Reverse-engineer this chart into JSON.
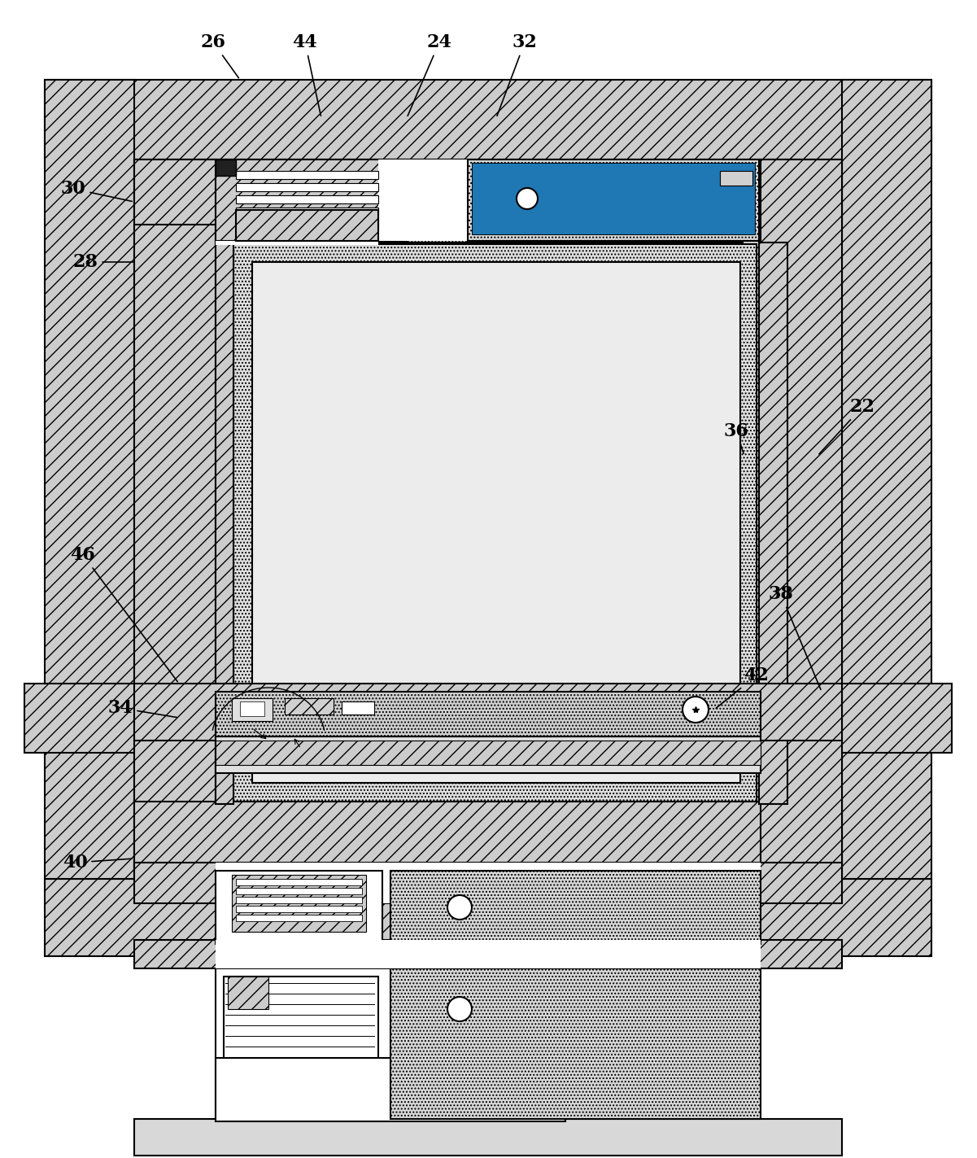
{
  "bg_color": "#ffffff",
  "frame_fc": "#cccccc",
  "panel_light": "#d8d8d8",
  "panel_mid": "#c8c8c8",
  "inner_light": "#e8e8e8",
  "figsize": [
    12.01,
    14.23
  ],
  "dpi": 100,
  "labels_info": [
    [
      "22",
      1060,
      500,
      1005,
      560
    ],
    [
      "24",
      540,
      52,
      500,
      145
    ],
    [
      "26",
      262,
      52,
      295,
      98
    ],
    [
      "28",
      105,
      322,
      168,
      322
    ],
    [
      "30",
      90,
      232,
      165,
      248
    ],
    [
      "32",
      645,
      52,
      610,
      145
    ],
    [
      "34",
      148,
      870,
      220,
      882
    ],
    [
      "36",
      905,
      530,
      915,
      560
    ],
    [
      "38",
      960,
      730,
      1010,
      850
    ],
    [
      "40",
      92,
      1060,
      165,
      1055
    ],
    [
      "42",
      930,
      830,
      878,
      872
    ],
    [
      "44",
      375,
      52,
      395,
      145
    ],
    [
      "46",
      102,
      682,
      220,
      840
    ]
  ]
}
